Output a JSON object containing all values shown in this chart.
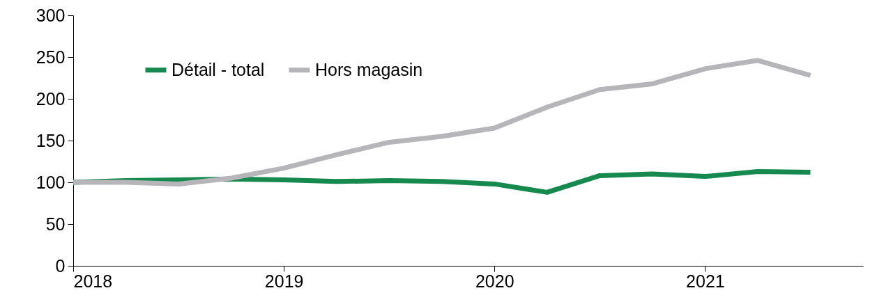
{
  "chart_data": {
    "type": "line",
    "x": [
      2018,
      2018.25,
      2018.5,
      2018.75,
      2019,
      2019.25,
      2019.5,
      2019.75,
      2020,
      2020.25,
      2020.5,
      2020.75,
      2021,
      2021.25,
      2021.5
    ],
    "series": [
      {
        "name": "Détail - total",
        "color": "#16894f",
        "values": [
          100,
          102,
          103,
          104,
          103,
          101,
          102,
          101,
          98,
          88,
          108,
          110,
          107,
          113,
          112
        ]
      },
      {
        "name": "Hors magasin",
        "color": "#b5b5ba",
        "values": [
          100,
          100,
          98,
          105,
          117,
          133,
          148,
          155,
          165,
          190,
          211,
          218,
          236,
          246,
          228
        ]
      }
    ],
    "xlim": [
      2018,
      2021.75
    ],
    "xticks": [
      2018,
      2019,
      2020,
      2021
    ],
    "ylim": [
      0,
      300
    ],
    "yticks": [
      0,
      50,
      100,
      150,
      200,
      250,
      300
    ],
    "legend": "top left",
    "grid": false,
    "line_style": "solid",
    "marker": "none"
  }
}
